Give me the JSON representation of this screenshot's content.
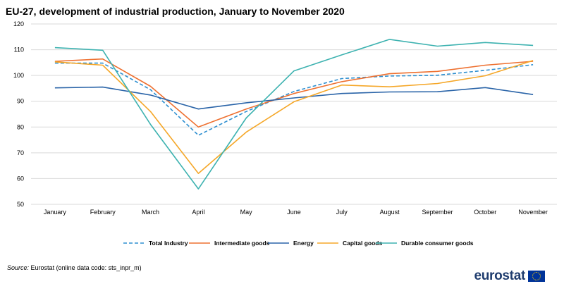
{
  "title": "EU-27, development of industrial production, January to November 2020",
  "source": {
    "label": "Source:",
    "text": "Eurostat (online data code: sts_inpr_m)"
  },
  "logo": {
    "text": "eurostat",
    "flag_icon": "eu-flag-icon"
  },
  "chart_data": {
    "type": "line",
    "title": "EU-27, development of industrial production, January to November 2020",
    "xlabel": "",
    "ylabel": "",
    "ylim": [
      50,
      120
    ],
    "yticks": [
      50,
      60,
      70,
      80,
      90,
      100,
      110,
      120
    ],
    "grid": true,
    "legend_position": "bottom",
    "categories": [
      "January",
      "February",
      "March",
      "April",
      "May",
      "June",
      "July",
      "August",
      "September",
      "October",
      "November"
    ],
    "series": [
      {
        "name": "Total Industry",
        "color": "#2e8fd0",
        "dashed": true,
        "values": [
          104.8,
          104.8,
          94.5,
          76.8,
          86.0,
          93.8,
          98.8,
          99.8,
          100.1,
          102.0,
          104.2
        ]
      },
      {
        "name": "Intermediate goods",
        "color": "#ee7030",
        "dashed": false,
        "values": [
          105.5,
          106.4,
          95.8,
          80.0,
          87.0,
          93.0,
          97.6,
          100.7,
          101.6,
          104.0,
          105.5
        ]
      },
      {
        "name": "Energy",
        "color": "#2a64a8",
        "dashed": false,
        "values": [
          95.2,
          95.5,
          92.4,
          87.0,
          89.4,
          91.3,
          93.0,
          93.6,
          93.7,
          95.3,
          92.6
        ]
      },
      {
        "name": "Capital goods",
        "color": "#f5a728",
        "dashed": false,
        "values": [
          105.3,
          104.0,
          86.0,
          62.0,
          78.0,
          89.8,
          96.3,
          95.6,
          96.9,
          99.9,
          105.8
        ]
      },
      {
        "name": "Durable consumer goods",
        "color": "#3db2b0",
        "dashed": false,
        "values": [
          110.8,
          109.8,
          81.0,
          56.0,
          83.5,
          101.8,
          108.0,
          114.0,
          111.4,
          112.8,
          111.7
        ]
      }
    ]
  }
}
